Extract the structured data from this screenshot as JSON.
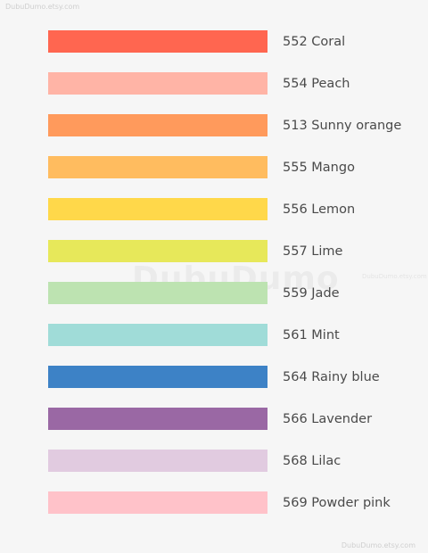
{
  "watermarks": {
    "top": "DubuDumo.etsy.com",
    "center": "DubuDumo",
    "center_small": "DubuDumo.etsy.com",
    "bottom": "DubuDumo.etsy.com"
  },
  "swatches": [
    {
      "label": "552 Coral",
      "color": "#ff6650"
    },
    {
      "label": "554 Peach",
      "color": "#ffb4a6"
    },
    {
      "label": "513 Sunny orange",
      "color": "#ff9a5c"
    },
    {
      "label": "555 Mango",
      "color": "#ffbc5f"
    },
    {
      "label": "556 Lemon",
      "color": "#ffd84a"
    },
    {
      "label": "557 Lime",
      "color": "#e7e85a"
    },
    {
      "label": "559 Jade",
      "color": "#bde3b1"
    },
    {
      "label": "561 Mint",
      "color": "#a0dcd8"
    },
    {
      "label": "564 Rainy blue",
      "color": "#3d82c6"
    },
    {
      "label": "566 Lavender",
      "color": "#9a68a4"
    },
    {
      "label": "568 Lilac",
      "color": "#e1cbe0"
    },
    {
      "label": "569 Powder pink",
      "color": "#ffc2c9"
    }
  ]
}
